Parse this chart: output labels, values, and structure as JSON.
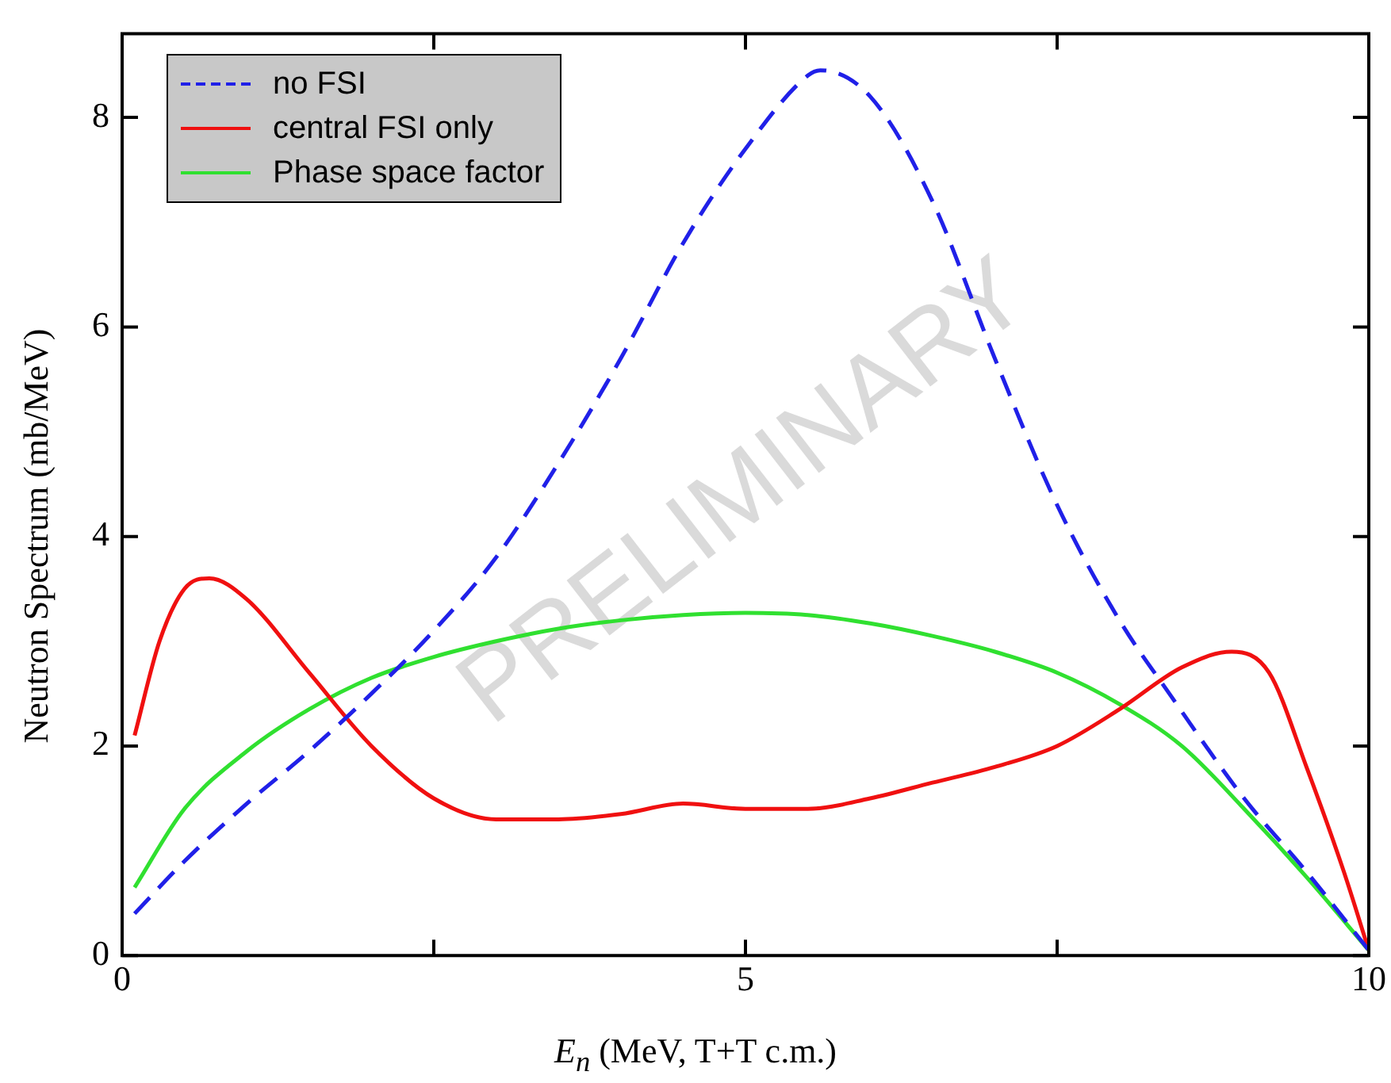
{
  "chart_data": {
    "type": "line",
    "xlabel": "E$_{n}$  (MeV, T+T c.m.)",
    "ylabel": "Neutron Spectrum (mb/MeV)",
    "xlim": [
      0,
      10
    ],
    "xticks": [
      0,
      {
        "value": 2.5,
        "label": null
      },
      5,
      {
        "value": 7.5,
        "label": null
      },
      10
    ],
    "ylim": [
      0,
      8.8
    ],
    "yticks": [
      0,
      2,
      4,
      6,
      8
    ],
    "legend": "top left",
    "grid": false,
    "marker": "none",
    "annotations": [
      "PRELIMINARY"
    ],
    "series": [
      {
        "name": "no FSI",
        "color": "#2020e8",
        "line_style": "dashed",
        "x": [
          0.1,
          0.5,
          1,
          1.5,
          2,
          2.5,
          3,
          3.5,
          4,
          4.5,
          5,
          5.5,
          5.6,
          6,
          6.5,
          7,
          7.5,
          8,
          8.4,
          9,
          9.5,
          10
        ],
        "values": [
          0.4,
          0.9,
          1.45,
          1.95,
          2.5,
          3.1,
          3.8,
          4.7,
          5.7,
          6.8,
          7.7,
          8.4,
          8.45,
          8.2,
          7.2,
          5.7,
          4.3,
          3.2,
          2.5,
          1.5,
          0.8,
          0.05
        ]
      },
      {
        "name": "central FSI only",
        "color": "#f01010",
        "line_style": "solid",
        "x": [
          0.1,
          0.3,
          0.5,
          0.7,
          1,
          1.5,
          2,
          2.5,
          3,
          3.5,
          4,
          4.5,
          5,
          5.5,
          6,
          6.5,
          7,
          7.5,
          8,
          8.5,
          8.9,
          9.2,
          9.5,
          9.8,
          10
        ],
        "values": [
          2.1,
          3.0,
          3.5,
          3.6,
          3.4,
          2.7,
          2.0,
          1.5,
          1.3,
          1.3,
          1.35,
          1.45,
          1.4,
          1.4,
          1.5,
          1.65,
          1.8,
          2.0,
          2.35,
          2.75,
          2.9,
          2.7,
          1.8,
          0.8,
          0.05
        ]
      },
      {
        "name": "Phase space factor",
        "color": "#30e030",
        "line_style": "solid",
        "x": [
          0.1,
          0.5,
          1,
          1.5,
          2,
          2.5,
          3,
          3.5,
          4,
          4.5,
          5,
          5.5,
          6,
          6.5,
          7,
          7.5,
          8,
          8.5,
          9,
          9.5,
          10
        ],
        "values": [
          0.65,
          1.4,
          1.95,
          2.35,
          2.65,
          2.85,
          3.0,
          3.12,
          3.2,
          3.25,
          3.27,
          3.25,
          3.17,
          3.05,
          2.9,
          2.7,
          2.4,
          2.0,
          1.4,
          0.75,
          0.05
        ]
      }
    ]
  }
}
